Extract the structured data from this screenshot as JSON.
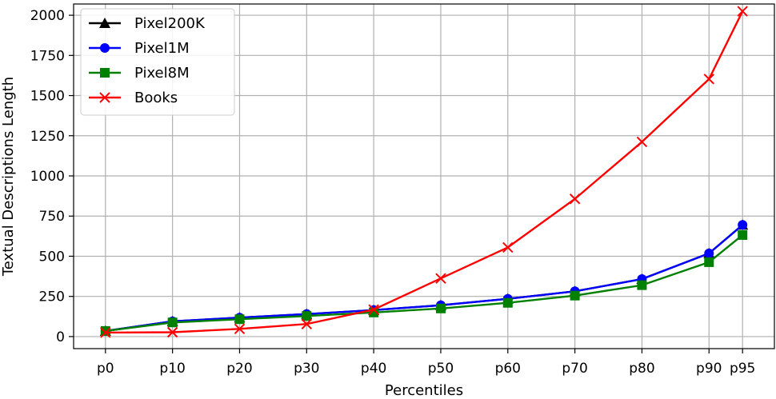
{
  "chart_data": {
    "type": "line",
    "title": "",
    "xlabel": "Percentiles",
    "ylabel": "Textual Descriptions Length",
    "categories": [
      "p0",
      "p10",
      "p20",
      "p30",
      "p40",
      "p50",
      "p60",
      "p70",
      "p80",
      "p90",
      "p95"
    ],
    "x": [
      0,
      10,
      20,
      30,
      40,
      50,
      60,
      70,
      80,
      90,
      95
    ],
    "xlim": [
      -4.75,
      99.75
    ],
    "ylim": [
      -75,
      2070
    ],
    "yticks": [
      0,
      250,
      500,
      750,
      1000,
      1250,
      1500,
      1750,
      2000
    ],
    "grid": true,
    "legend_position": "top-left",
    "series": [
      {
        "name": "Pixel200K",
        "color": "#000000",
        "marker": "triangle",
        "values": [
          35,
          95,
          118,
          140,
          165,
          195,
          235,
          282,
          358,
          518,
          695
        ]
      },
      {
        "name": "Pixel1M",
        "color": "#0000ff",
        "marker": "circle",
        "values": [
          35,
          95,
          118,
          140,
          165,
          195,
          235,
          282,
          358,
          518,
          695
        ]
      },
      {
        "name": "Pixel8M",
        "color": "#008000",
        "marker": "square",
        "values": [
          35,
          88,
          108,
          128,
          150,
          175,
          210,
          255,
          320,
          463,
          632
        ]
      },
      {
        "name": "Books",
        "color": "#ff0000",
        "marker": "x",
        "values": [
          25,
          27,
          48,
          78,
          168,
          362,
          555,
          857,
          1212,
          1603,
          2025
        ]
      }
    ]
  }
}
